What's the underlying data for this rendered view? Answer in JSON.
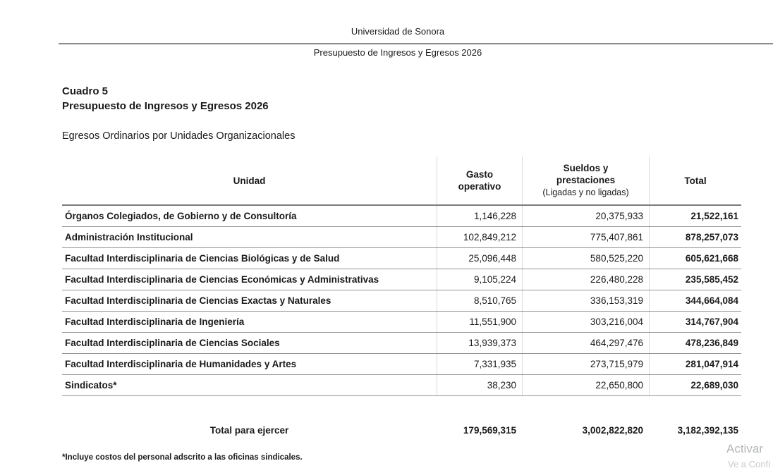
{
  "page_header": {
    "university": "Universidad de Sonora",
    "document_title": "Presupuesto de Ingresos y Egresos 2026"
  },
  "title": {
    "cuadro": "Cuadro 5",
    "line2": "Presupuesto de Ingresos y Egresos 2026",
    "subtitle": "Egresos Ordinarios por Unidades Organizacionales"
  },
  "table": {
    "headers": {
      "unidad": "Unidad",
      "gasto_operativo": "Gasto operativo",
      "sueldos": "Sueldos y prestaciones",
      "sueldos_sub": "(Ligadas y no ligadas)",
      "total": "Total"
    },
    "rows": [
      {
        "unidad": "Órganos Colegiados, de Gobierno y de Consultoría",
        "gasto": "1,146,228",
        "sueldos": "20,375,933",
        "total": "21,522,161"
      },
      {
        "unidad": "Administración Institucional",
        "gasto": "102,849,212",
        "sueldos": "775,407,861",
        "total": "878,257,073"
      },
      {
        "unidad": "Facultad Interdisciplinaria de Ciencias Biológicas y de Salud",
        "gasto": "25,096,448",
        "sueldos": "580,525,220",
        "total": "605,621,668"
      },
      {
        "unidad": "Facultad Interdisciplinaria de Ciencias Económicas y Administrativas",
        "gasto": "9,105,224",
        "sueldos": "226,480,228",
        "total": "235,585,452"
      },
      {
        "unidad": "Facultad Interdisciplinaria de Ciencias Exactas y Naturales",
        "gasto": "8,510,765",
        "sueldos": "336,153,319",
        "total": "344,664,084"
      },
      {
        "unidad": "Facultad Interdisciplinaria de Ingeniería",
        "gasto": "11,551,900",
        "sueldos": "303,216,004",
        "total": "314,767,904"
      },
      {
        "unidad": "Facultad Interdisciplinaria de Ciencias Sociales",
        "gasto": "13,939,373",
        "sueldos": "464,297,476",
        "total": "478,236,849"
      },
      {
        "unidad": "Facultad Interdisciplinaria de Humanidades y Artes",
        "gasto": "7,331,935",
        "sueldos": "273,715,979",
        "total": "281,047,914"
      },
      {
        "unidad": "Sindicatos*",
        "gasto": "38,230",
        "sueldos": "22,650,800",
        "total": "22,689,030"
      }
    ],
    "total_row": {
      "label": "Total para ejercer",
      "gasto": "179,569,315",
      "sueldos": "3,002,822,820",
      "total": "3,182,392,135"
    }
  },
  "footnote": "*Incluye costos del personal adscrito a las oficinas sindicales.",
  "watermark": {
    "line1": "Activar",
    "line2": "Ve a Confi"
  },
  "colors": {
    "text": "#1a1a1a",
    "header_rule": "#8c8c8c",
    "row_line": "#949494",
    "column_divider": "#dadada",
    "watermark": "#b3b6b8"
  }
}
